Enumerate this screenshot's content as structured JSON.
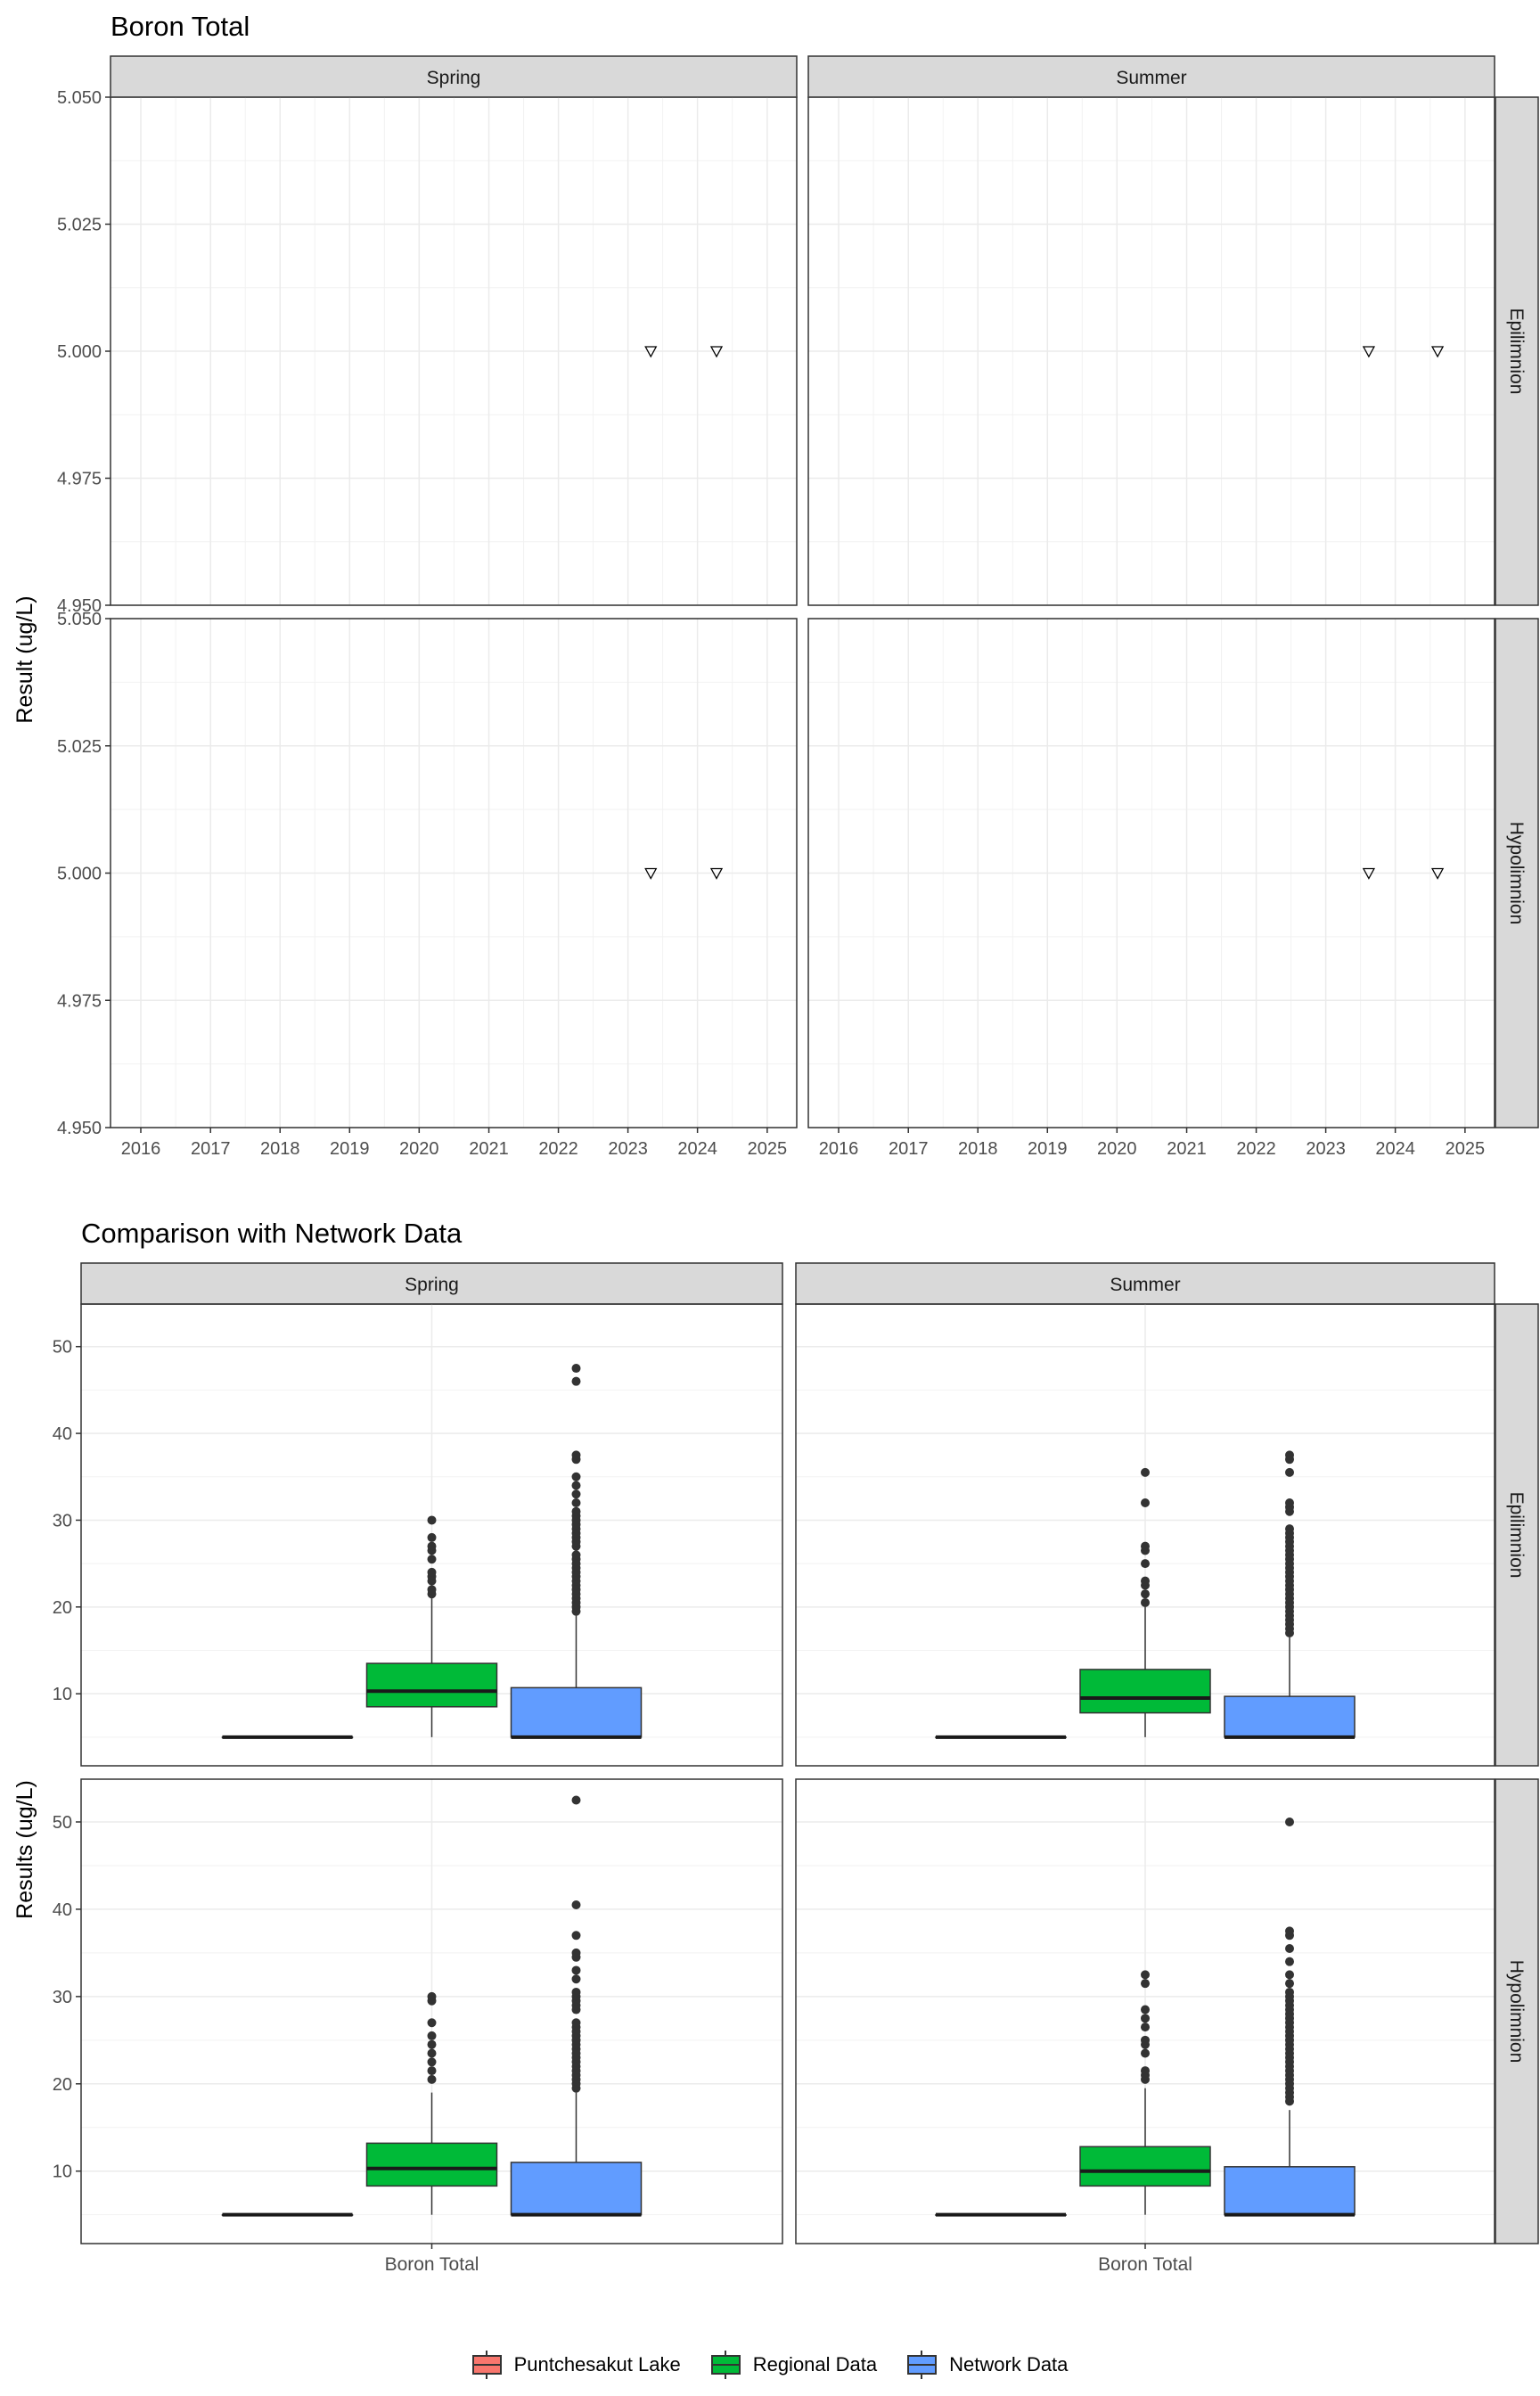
{
  "chart_data": [
    {
      "type": "scatter",
      "title": "Boron Total",
      "ylabel": "Result (ug/L)",
      "xlabel": "",
      "facet_columns": [
        "Spring",
        "Summer"
      ],
      "facet_rows": [
        "Epilimnion",
        "Hypolimnion"
      ],
      "x_ticks": [
        "2016",
        "2017",
        "2018",
        "2019",
        "2020",
        "2021",
        "2022",
        "2023",
        "2024",
        "2025"
      ],
      "xlim": [
        "2015-07-26",
        "2025-06-05"
      ],
      "y_ticks": [
        "4.950",
        "4.975",
        "5.000",
        "5.025",
        "5.050"
      ],
      "ylim": [
        4.95,
        5.05
      ],
      "grid": true,
      "marker": "open-down-triangle",
      "panels": [
        {
          "column": "Spring",
          "row": "Epilimnion",
          "points": [
            {
              "x": "2023-05-01",
              "y": 5.0
            },
            {
              "x": "2024-04-10",
              "y": 5.0
            }
          ]
        },
        {
          "column": "Summer",
          "row": "Epilimnion",
          "points": [
            {
              "x": "2023-08-15",
              "y": 5.0
            },
            {
              "x": "2024-08-10",
              "y": 5.0
            }
          ]
        },
        {
          "column": "Spring",
          "row": "Hypolimnion",
          "points": [
            {
              "x": "2023-05-01",
              "y": 5.0
            },
            {
              "x": "2024-04-10",
              "y": 5.0
            }
          ]
        },
        {
          "column": "Summer",
          "row": "Hypolimnion",
          "points": [
            {
              "x": "2023-08-15",
              "y": 5.0
            },
            {
              "x": "2024-08-10",
              "y": 5.0
            }
          ]
        }
      ]
    },
    {
      "type": "box",
      "title": "Comparison with Network Data",
      "ylabel": "Results (ug/L)",
      "xlabel": "",
      "category": "Boron Total",
      "facet_columns": [
        "Spring",
        "Summer"
      ],
      "facet_rows": [
        "Epilimnion",
        "Hypolimnion"
      ],
      "y_ticks": [
        "10",
        "20",
        "30",
        "40",
        "50"
      ],
      "ylim": [
        1.7,
        54.9
      ],
      "grid": true,
      "legend": {
        "position": "bottom",
        "entries": [
          {
            "name": "Puntchesakut Lake",
            "color": "#F8766D"
          },
          {
            "name": "Regional Data",
            "color": "#00BA38"
          },
          {
            "name": "Network Data",
            "color": "#619CFF"
          }
        ]
      },
      "panels": [
        {
          "column": "Spring",
          "row": "Epilimnion",
          "boxes": [
            {
              "group": "Puntchesakut Lake",
              "q1": 5,
              "median": 5,
              "q3": 5,
              "whisker_low": 5,
              "whisker_high": 5,
              "outliers": []
            },
            {
              "group": "Regional Data",
              "q1": 8.5,
              "median": 10.3,
              "q3": 13.5,
              "whisker_low": 5,
              "whisker_high": 21,
              "outliers": [
                21.5,
                22,
                23,
                23.5,
                24,
                25.5,
                26.5,
                27,
                28,
                30
              ]
            },
            {
              "group": "Network Data",
              "q1": 5,
              "median": 5,
              "q3": 10.7,
              "whisker_low": 5,
              "whisker_high": 19,
              "outliers": [
                19.5,
                20,
                20.5,
                21,
                21.5,
                22,
                22.5,
                23,
                23.5,
                24,
                24.5,
                25,
                25.5,
                26,
                27,
                27.5,
                28,
                28.5,
                29,
                29.5,
                30,
                30.5,
                31,
                32,
                33,
                34,
                35,
                37,
                37.5,
                46,
                47.5
              ]
            }
          ]
        },
        {
          "column": "Summer",
          "row": "Epilimnion",
          "boxes": [
            {
              "group": "Puntchesakut Lake",
              "q1": 5,
              "median": 5,
              "q3": 5,
              "whisker_low": 5,
              "whisker_high": 5,
              "outliers": []
            },
            {
              "group": "Regional Data",
              "q1": 7.8,
              "median": 9.5,
              "q3": 12.8,
              "whisker_low": 5,
              "whisker_high": 20,
              "outliers": [
                20.5,
                21.5,
                22.5,
                23,
                25,
                26.5,
                27,
                32,
                35.5
              ]
            },
            {
              "group": "Network Data",
              "q1": 5,
              "median": 5,
              "q3": 9.7,
              "whisker_low": 5,
              "whisker_high": 16.5,
              "outliers": [
                17,
                17.5,
                18,
                18.5,
                19,
                19.5,
                20,
                20.5,
                21,
                21.5,
                22,
                22.5,
                23,
                23.5,
                24,
                24.5,
                25,
                25.5,
                26,
                26.5,
                27,
                27.5,
                28,
                28.5,
                29,
                31,
                31.5,
                32,
                35.5,
                37,
                37.5
              ]
            }
          ]
        },
        {
          "column": "Spring",
          "row": "Hypolimnion",
          "boxes": [
            {
              "group": "Puntchesakut Lake",
              "q1": 5,
              "median": 5,
              "q3": 5,
              "whisker_low": 5,
              "whisker_high": 5,
              "outliers": []
            },
            {
              "group": "Regional Data",
              "q1": 8.3,
              "median": 10.3,
              "q3": 13.2,
              "whisker_low": 5,
              "whisker_high": 19,
              "outliers": [
                20.5,
                21.5,
                22.5,
                23.5,
                24.5,
                25.5,
                27,
                29.5,
                30
              ]
            },
            {
              "group": "Network Data",
              "q1": 5,
              "median": 5,
              "q3": 11,
              "whisker_low": 5,
              "whisker_high": 19,
              "outliers": [
                19.5,
                20,
                20.5,
                21,
                21.5,
                22,
                22.5,
                23,
                23.5,
                24,
                24.5,
                25,
                25.5,
                26,
                26.5,
                27,
                28.5,
                29,
                29.5,
                30,
                30.5,
                32,
                33,
                34.5,
                35,
                37,
                40.5,
                52.5
              ]
            }
          ]
        },
        {
          "column": "Summer",
          "row": "Hypolimnion",
          "boxes": [
            {
              "group": "Puntchesakut Lake",
              "q1": 5,
              "median": 5,
              "q3": 5,
              "whisker_low": 5,
              "whisker_high": 5,
              "outliers": []
            },
            {
              "group": "Regional Data",
              "q1": 8.3,
              "median": 10,
              "q3": 12.8,
              "whisker_low": 5,
              "whisker_high": 19.5,
              "outliers": [
                20.5,
                21,
                21.5,
                23.5,
                24.5,
                25,
                26.5,
                27.5,
                28.5,
                31.5,
                32.5
              ]
            },
            {
              "group": "Network Data",
              "q1": 5,
              "median": 5,
              "q3": 10.5,
              "whisker_low": 5,
              "whisker_high": 17,
              "outliers": [
                18,
                18.5,
                19,
                19.5,
                20,
                20.5,
                21,
                21.5,
                22,
                22.5,
                23,
                23.5,
                24,
                24.5,
                25,
                25.5,
                26,
                26.5,
                27,
                27.5,
                28,
                28.5,
                29,
                29.5,
                30,
                30.5,
                31.5,
                32.5,
                34,
                35.5,
                37,
                37.5,
                50
              ]
            }
          ]
        }
      ]
    }
  ]
}
